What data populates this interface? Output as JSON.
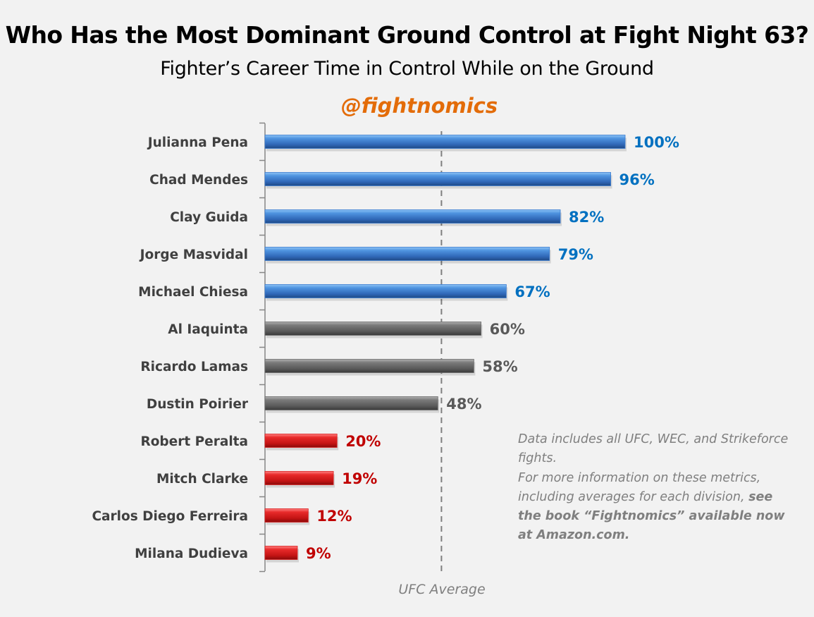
{
  "chart_data": {
    "type": "bar",
    "orientation": "horizontal",
    "title": "Who Has the Most Dominant Ground Control at Fight Night 63?",
    "subtitle": "Fighter’s Career Time in Control While on the Ground",
    "categories": [
      "Julianna Pena",
      "Chad Mendes",
      "Clay Guida",
      "Jorge Masvidal",
      "Michael Chiesa",
      "Al Iaquinta",
      "Ricardo Lamas",
      "Dustin Poirier",
      "Robert Peralta",
      "Mitch Clarke",
      "Carlos Diego Ferreira",
      "Milana Dudieva"
    ],
    "values": [
      100,
      96,
      82,
      79,
      67,
      60,
      58,
      48,
      20,
      19,
      12,
      9
    ],
    "labels": [
      "100%",
      "96%",
      "82%",
      "79%",
      "67%",
      "60%",
      "58%",
      "48%",
      "20%",
      "19%",
      "12%",
      "9%"
    ],
    "groups": [
      "above",
      "above",
      "above",
      "above",
      "above",
      "average",
      "average",
      "average",
      "below",
      "below",
      "below",
      "below"
    ],
    "group_colors": {
      "above": "#3a7bd0",
      "average": "#6b6b6b",
      "below": "#d91e1e"
    },
    "label_colors": {
      "above": "#0070c0",
      "average": "#595959",
      "below": "#c00000"
    },
    "xlim": [
      0,
      100
    ],
    "reference_line": {
      "label": "UFC Average",
      "value": 49,
      "style": "dashed"
    },
    "grid": false,
    "legend": "none"
  },
  "brand": "@fightnomics",
  "notes": {
    "note1": "Data includes all UFC, WEC, and Strikeforce fights.",
    "note2_plain": "For more information on these metrics, including averages for each division, ",
    "note2_bold": "see the book “Fightnomics” available now at Amazon.com."
  }
}
